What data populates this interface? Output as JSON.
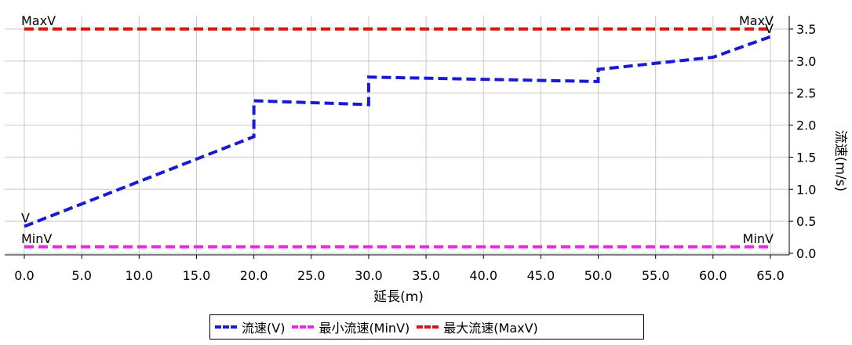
{
  "chart_data": {
    "type": "line",
    "title": "",
    "xlabel": "延長(m)",
    "ylabel": "流速(m/s)",
    "xlim": [
      0,
      65
    ],
    "ylim": [
      0,
      3.5
    ],
    "grid": true,
    "legend_placement": "bottom-center",
    "x_ticks": [
      "0.0",
      "5.0",
      "10.0",
      "15.0",
      "20.0",
      "25.0",
      "30.0",
      "35.0",
      "40.0",
      "45.0",
      "50.0",
      "55.0",
      "60.0",
      "65.0"
    ],
    "y_ticks": [
      "0.0",
      "0.5",
      "1.0",
      "1.5",
      "2.0",
      "2.5",
      "3.0",
      "3.5"
    ],
    "series": [
      {
        "name": "流速(V)",
        "color": "#1a1ad6",
        "style": "dashed",
        "label": "V",
        "x": [
          0,
          20,
          20,
          30,
          30,
          50,
          50,
          60,
          65
        ],
        "y": [
          0.42,
          1.82,
          2.38,
          2.32,
          2.75,
          2.68,
          2.87,
          3.06,
          3.38
        ]
      },
      {
        "name": "最小流速(MinV)",
        "color": "#ee22ee",
        "style": "dashed",
        "label": "MinV",
        "x": [
          0,
          65
        ],
        "y": [
          0.1,
          0.1
        ]
      },
      {
        "name": "最大流速(MaxV)",
        "color": "#e01010",
        "style": "dashed",
        "label": "MaxV",
        "x": [
          0,
          65
        ],
        "y": [
          3.5,
          3.5
        ]
      }
    ]
  }
}
